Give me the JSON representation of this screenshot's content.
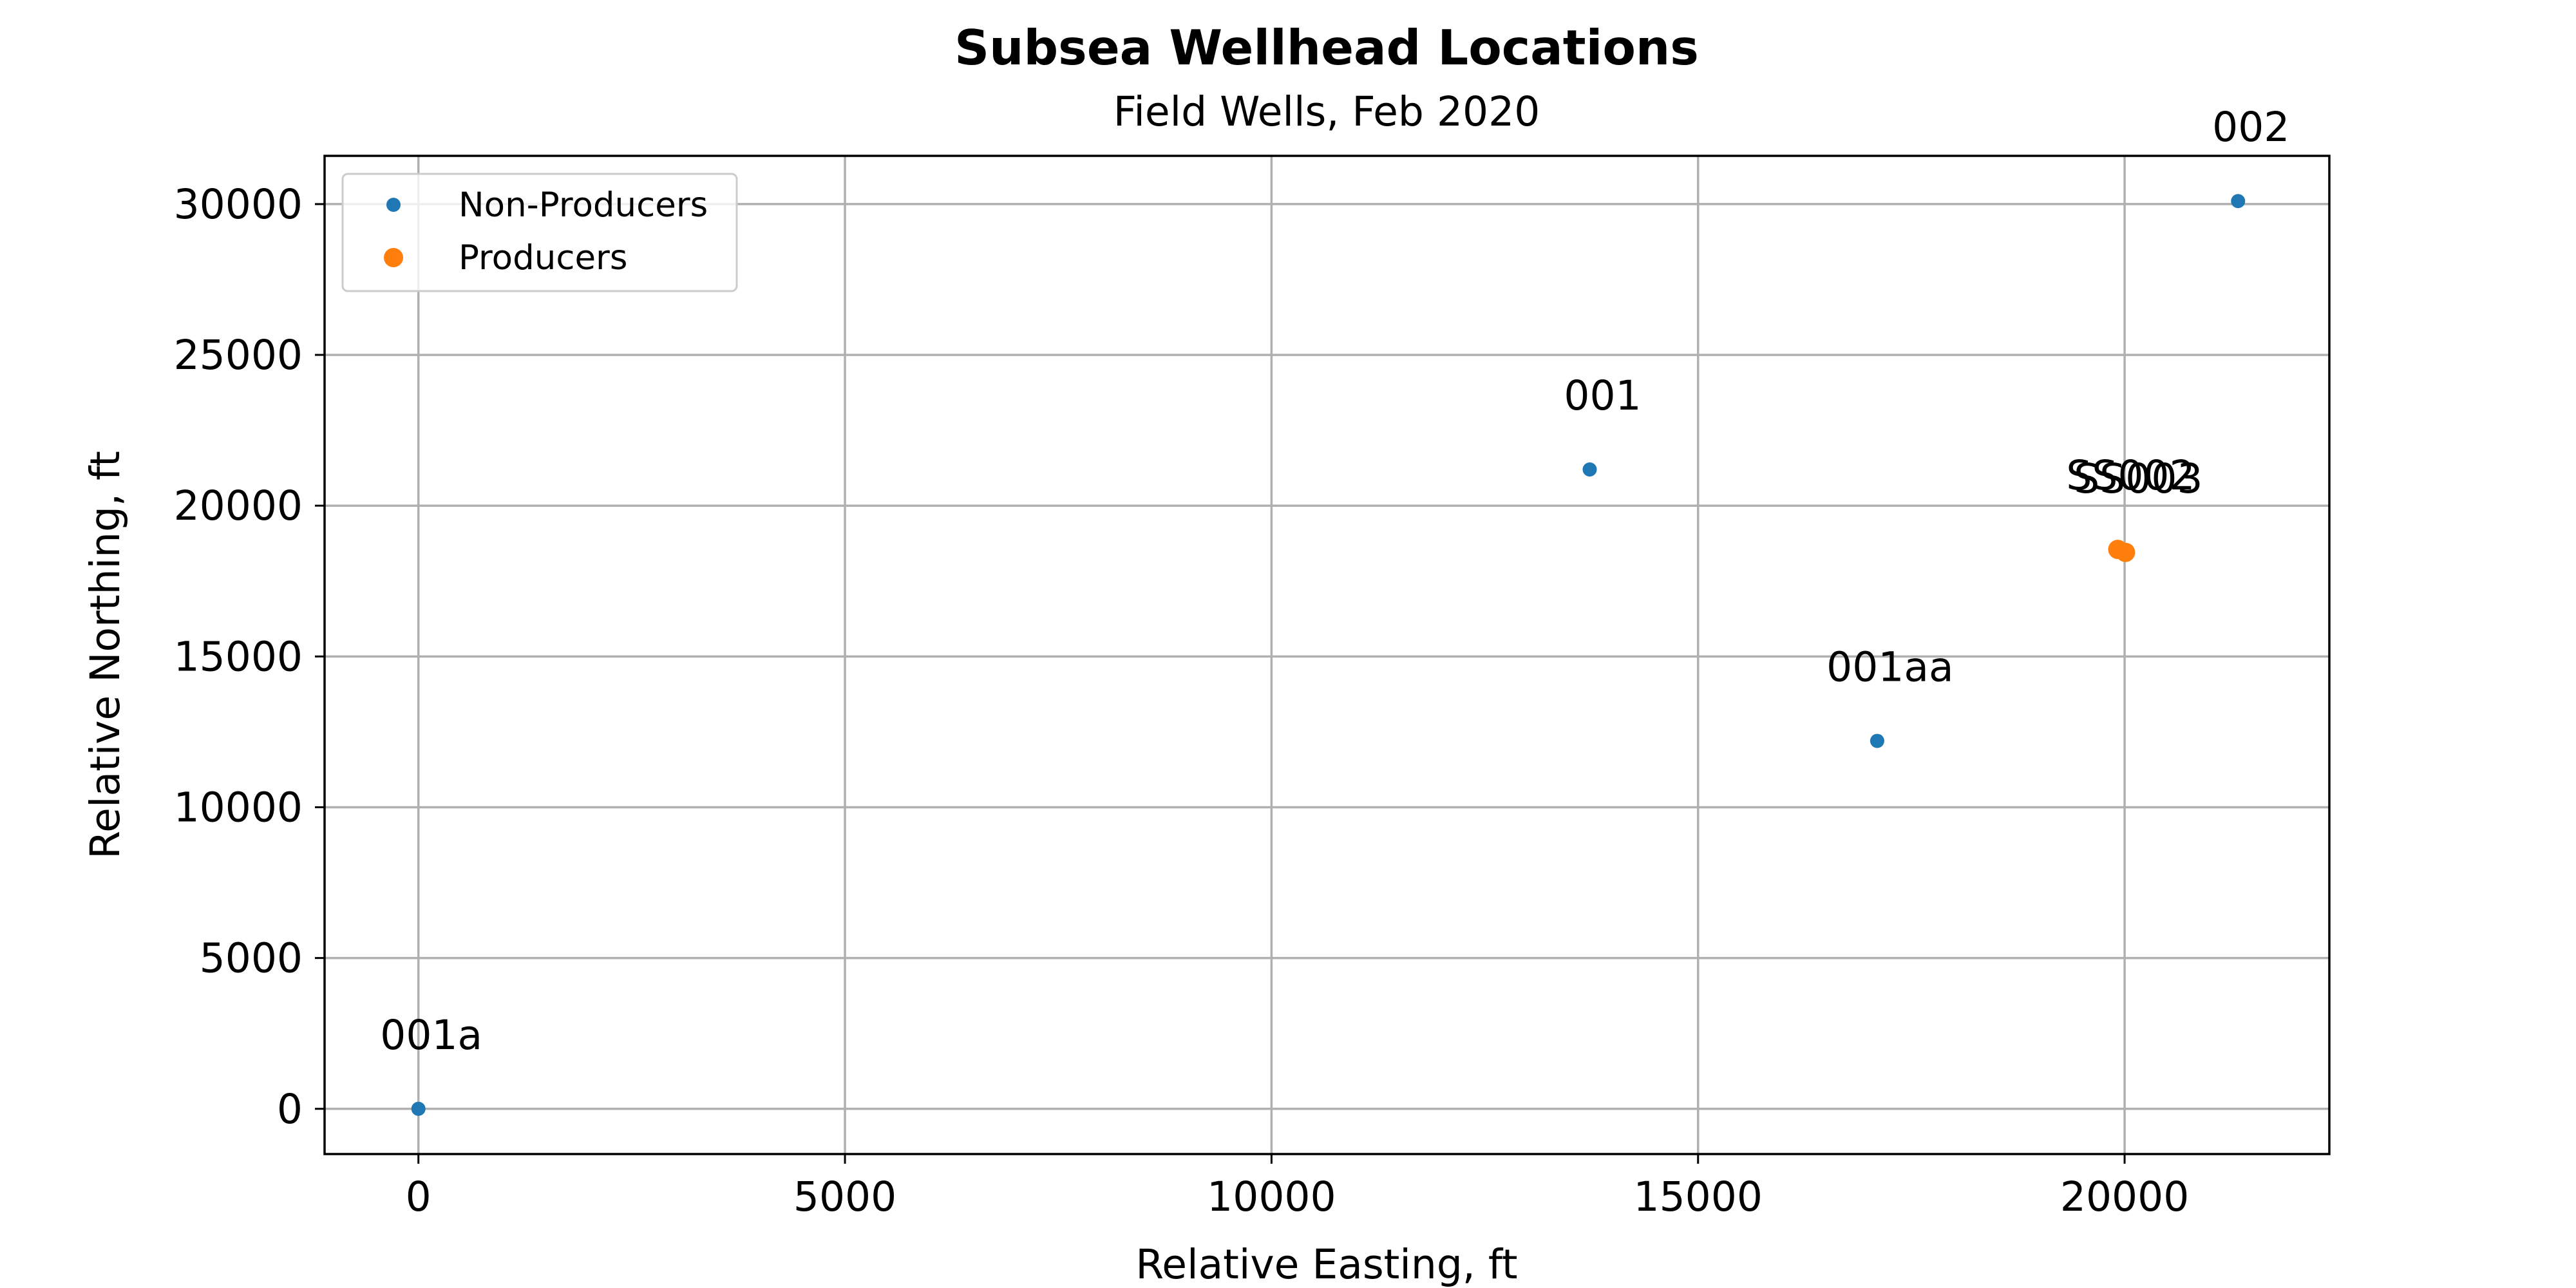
{
  "chart_data": {
    "type": "scatter",
    "title": "Subsea Wellhead Locations",
    "subtitle": "Field Wells, Feb 2020",
    "xlabel": "Relative Easting, ft",
    "ylabel": "Relative Northing, ft",
    "xlim": [
      -1100,
      22400
    ],
    "ylim": [
      -1500,
      31600
    ],
    "xticks": [
      0,
      5000,
      10000,
      15000,
      20000
    ],
    "yticks": [
      0,
      5000,
      10000,
      15000,
      20000,
      25000,
      30000
    ],
    "grid": true,
    "legend_position": "top-left",
    "series": [
      {
        "name": "Non-Producers",
        "color": "#1f77b4",
        "points": [
          {
            "label": "001",
            "x": 13730,
            "y": 21200
          },
          {
            "label": "001a",
            "x": 0,
            "y": 0
          },
          {
            "label": "001aa",
            "x": 17100,
            "y": 12200
          },
          {
            "label": "002",
            "x": 21330,
            "y": 30100
          }
        ]
      },
      {
        "name": "Producers",
        "color": "#ff7f0e",
        "points": [
          {
            "label": "SS002",
            "x": 19920,
            "y": 18550
          },
          {
            "label": "SS003",
            "x": 20010,
            "y": 18450
          }
        ]
      }
    ]
  }
}
